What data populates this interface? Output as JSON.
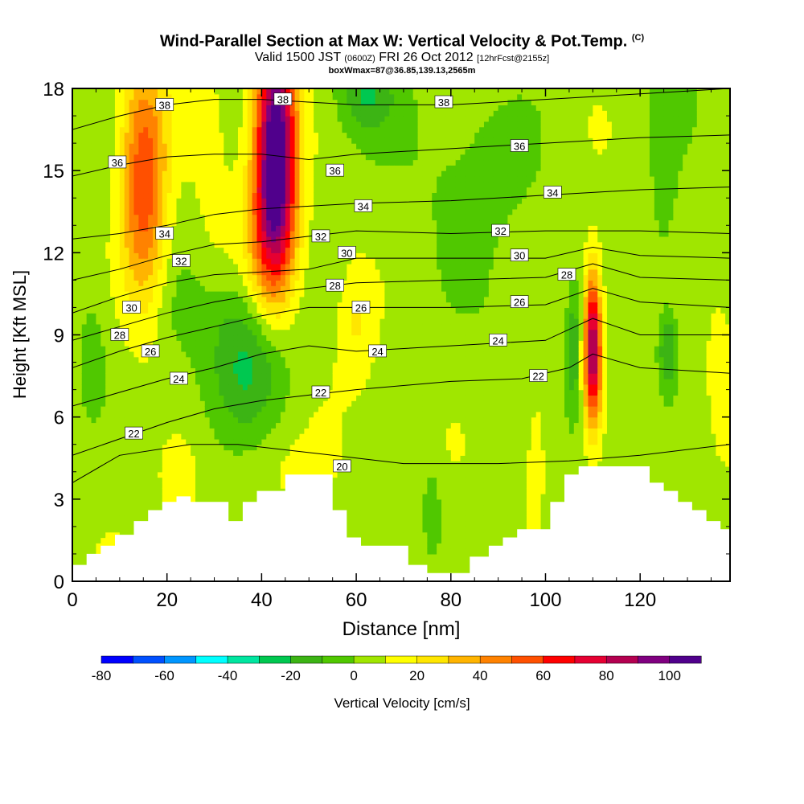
{
  "header": {
    "title": "Wind-Parallel Section at Max W: Vertical Velocity & Pot.Temp.",
    "title_tag": "(C)",
    "valid_prefix": "Valid 1500 JST",
    "valid_zulu": "(0600Z)",
    "valid_date": "FRI 26 Oct 2012",
    "forecast_tag": "[12hrFcst@2155z]",
    "box_info": "boxWmax=87@36.85,139.13,2565m"
  },
  "chart_data": {
    "type": "heatmap",
    "xlabel": "Distance [nm]",
    "ylabel": "Height [Kft MSL]",
    "xlim": [
      0,
      139
    ],
    "ylim": [
      0,
      18
    ],
    "x_ticks": [
      0,
      20,
      40,
      60,
      80,
      100,
      120
    ],
    "y_ticks": [
      0,
      3,
      6,
      9,
      12,
      15,
      18
    ],
    "colorbar": {
      "label": "Vertical Velocity [cm/s]",
      "min": -80,
      "max": 110,
      "step": 10,
      "tick_values": [
        -80,
        -60,
        -40,
        -20,
        0,
        20,
        40,
        60,
        80,
        100
      ],
      "colors": [
        "#0000ff",
        "#0050ff",
        "#0096ff",
        "#00ffff",
        "#00e6a0",
        "#00c850",
        "#3cb414",
        "#50c800",
        "#a0e600",
        "#ffff00",
        "#ffe600",
        "#ffb400",
        "#ff8200",
        "#ff5000",
        "#ff0000",
        "#e60032",
        "#b40050",
        "#800080",
        "#50008c"
      ]
    },
    "background_value": 5,
    "updrafts": [
      {
        "x": 15,
        "y": 14.5,
        "sx": 3.5,
        "sy": 3.2,
        "amp": 55
      },
      {
        "x": 43,
        "y": 16.0,
        "sx": 3.0,
        "sy": 3.0,
        "amp": 108
      },
      {
        "x": 42,
        "y": 12.5,
        "sx": 3.5,
        "sy": 2.0,
        "amp": 30
      },
      {
        "x": 110,
        "y": 8.5,
        "sx": 1.3,
        "sy": 1.9,
        "amp": 88
      },
      {
        "x": 98,
        "y": 5.0,
        "sx": 2.0,
        "sy": 2.0,
        "amp": 14
      },
      {
        "x": 60,
        "y": 9.5,
        "sx": 2.5,
        "sy": 1.5,
        "amp": 13
      },
      {
        "x": 45,
        "y": 4.0,
        "sx": 8.0,
        "sy": 1.2,
        "amp": 9
      },
      {
        "x": 23,
        "y": 3.5,
        "sx": 3.0,
        "sy": 1.2,
        "amp": 8
      },
      {
        "x": 137,
        "y": 8.0,
        "sx": 1.5,
        "sy": 1.5,
        "amp": 12
      },
      {
        "x": 29,
        "y": 13.5,
        "sx": 3.0,
        "sy": 3.5,
        "amp": 6
      }
    ],
    "downdrafts": [
      {
        "x": 37,
        "y": 8.0,
        "sx": 6.0,
        "sy": 1.6,
        "amp": 24
      },
      {
        "x": 106,
        "y": 8.5,
        "sx": 1.0,
        "sy": 1.5,
        "amp": 24
      },
      {
        "x": 126,
        "y": 8.5,
        "sx": 1.5,
        "sy": 1.0,
        "amp": 28
      },
      {
        "x": 62,
        "y": 17.8,
        "sx": 4.0,
        "sy": 1.0,
        "amp": 22
      },
      {
        "x": 76,
        "y": 2.5,
        "sx": 1.5,
        "sy": 1.2,
        "amp": 15
      },
      {
        "x": 90,
        "y": 15.5,
        "sx": 8.0,
        "sy": 2.0,
        "amp": 10
      },
      {
        "x": 4,
        "y": 8.0,
        "sx": 2.0,
        "sy": 1.5,
        "amp": 13
      },
      {
        "x": 125,
        "y": 14.0,
        "sx": 2.0,
        "sy": 2.5,
        "amp": 12
      },
      {
        "x": 30,
        "y": 10.0,
        "sx": 8.0,
        "sy": 1.0,
        "amp": 6
      }
    ],
    "terrain_profile": [
      [
        0,
        0.6
      ],
      [
        3,
        0.6
      ],
      [
        3,
        1.0
      ],
      [
        6,
        1.0
      ],
      [
        6,
        1.3
      ],
      [
        9,
        1.3
      ],
      [
        9,
        1.7
      ],
      [
        13,
        1.7
      ],
      [
        13,
        2.2
      ],
      [
        16,
        2.2
      ],
      [
        16,
        2.6
      ],
      [
        19,
        2.6
      ],
      [
        19,
        2.9
      ],
      [
        22,
        2.9
      ],
      [
        22,
        3.1
      ],
      [
        25,
        3.1
      ],
      [
        25,
        2.9
      ],
      [
        33,
        2.9
      ],
      [
        33,
        2.2
      ],
      [
        36,
        2.2
      ],
      [
        36,
        2.9
      ],
      [
        39,
        2.9
      ],
      [
        39,
        3.3
      ],
      [
        45,
        3.3
      ],
      [
        45,
        3.9
      ],
      [
        55,
        3.9
      ],
      [
        55,
        2.6
      ],
      [
        58,
        2.6
      ],
      [
        58,
        1.6
      ],
      [
        61,
        1.6
      ],
      [
        61,
        1.3
      ],
      [
        71,
        1.3
      ],
      [
        71,
        0.6
      ],
      [
        75,
        0.6
      ],
      [
        75,
        0.3
      ],
      [
        84,
        0.3
      ],
      [
        84,
        0.9
      ],
      [
        88,
        0.9
      ],
      [
        88,
        1.3
      ],
      [
        91,
        1.3
      ],
      [
        91,
        1.6
      ],
      [
        94,
        1.6
      ],
      [
        94,
        1.9
      ],
      [
        101,
        1.9
      ],
      [
        101,
        2.9
      ],
      [
        104,
        2.9
      ],
      [
        104,
        3.9
      ],
      [
        107,
        3.9
      ],
      [
        107,
        4.2
      ],
      [
        122,
        4.2
      ],
      [
        122,
        3.6
      ],
      [
        125,
        3.6
      ],
      [
        125,
        3.3
      ],
      [
        128,
        3.3
      ],
      [
        128,
        2.9
      ],
      [
        131,
        2.9
      ],
      [
        131,
        2.6
      ],
      [
        134,
        2.6
      ],
      [
        134,
        2.2
      ],
      [
        137,
        2.2
      ],
      [
        137,
        1.9
      ],
      [
        139,
        1.9
      ]
    ],
    "isentropes": [
      {
        "value": 20,
        "points": [
          [
            0,
            3.6
          ],
          [
            10,
            4.6
          ],
          [
            25,
            5.0
          ],
          [
            35,
            5.0
          ],
          [
            45,
            4.8
          ],
          [
            55,
            4.6
          ],
          [
            70,
            4.3
          ],
          [
            90,
            4.3
          ],
          [
            105,
            4.4
          ],
          [
            120,
            4.6
          ],
          [
            139,
            5.0
          ]
        ]
      },
      {
        "value": 22,
        "points": [
          [
            0,
            4.6
          ],
          [
            10,
            5.2
          ],
          [
            20,
            5.8
          ],
          [
            30,
            6.3
          ],
          [
            40,
            6.6
          ],
          [
            50,
            6.8
          ],
          [
            60,
            7.0
          ],
          [
            80,
            7.3
          ],
          [
            95,
            7.4
          ],
          [
            105,
            7.8
          ],
          [
            110,
            8.3
          ],
          [
            120,
            7.8
          ],
          [
            139,
            7.6
          ]
        ]
      },
      {
        "value": 24,
        "points": [
          [
            0,
            6.4
          ],
          [
            10,
            6.9
          ],
          [
            20,
            7.4
          ],
          [
            30,
            7.8
          ],
          [
            40,
            8.3
          ],
          [
            50,
            8.6
          ],
          [
            60,
            8.4
          ],
          [
            80,
            8.6
          ],
          [
            100,
            8.8
          ],
          [
            110,
            9.6
          ],
          [
            120,
            9.0
          ],
          [
            139,
            9.0
          ]
        ]
      },
      {
        "value": 26,
        "points": [
          [
            0,
            7.8
          ],
          [
            10,
            8.4
          ],
          [
            20,
            8.9
          ],
          [
            30,
            9.3
          ],
          [
            40,
            9.7
          ],
          [
            50,
            10.0
          ],
          [
            60,
            10.0
          ],
          [
            80,
            10.0
          ],
          [
            100,
            10.1
          ],
          [
            110,
            10.7
          ],
          [
            120,
            10.2
          ],
          [
            139,
            10.0
          ]
        ]
      },
      {
        "value": 28,
        "points": [
          [
            0,
            8.8
          ],
          [
            10,
            9.3
          ],
          [
            20,
            9.8
          ],
          [
            30,
            10.2
          ],
          [
            40,
            10.5
          ],
          [
            50,
            10.7
          ],
          [
            60,
            10.9
          ],
          [
            80,
            11.0
          ],
          [
            100,
            11.1
          ],
          [
            110,
            11.6
          ],
          [
            120,
            11.1
          ],
          [
            139,
            11.0
          ]
        ]
      },
      {
        "value": 30,
        "points": [
          [
            0,
            9.8
          ],
          [
            10,
            10.4
          ],
          [
            20,
            10.9
          ],
          [
            30,
            11.2
          ],
          [
            40,
            11.3
          ],
          [
            50,
            11.4
          ],
          [
            60,
            11.8
          ],
          [
            80,
            11.8
          ],
          [
            100,
            11.8
          ],
          [
            110,
            12.2
          ],
          [
            120,
            11.9
          ],
          [
            139,
            11.8
          ]
        ]
      },
      {
        "value": 32,
        "points": [
          [
            0,
            11.0
          ],
          [
            10,
            11.4
          ],
          [
            20,
            11.9
          ],
          [
            30,
            12.3
          ],
          [
            40,
            12.4
          ],
          [
            50,
            12.6
          ],
          [
            60,
            12.8
          ],
          [
            80,
            12.7
          ],
          [
            100,
            12.8
          ],
          [
            120,
            12.8
          ],
          [
            139,
            12.7
          ]
        ]
      },
      {
        "value": 34,
        "points": [
          [
            0,
            12.5
          ],
          [
            10,
            12.7
          ],
          [
            20,
            13.0
          ],
          [
            30,
            13.4
          ],
          [
            40,
            13.6
          ],
          [
            50,
            13.7
          ],
          [
            60,
            13.8
          ],
          [
            80,
            13.9
          ],
          [
            100,
            14.1
          ],
          [
            120,
            14.3
          ],
          [
            139,
            14.4
          ]
        ]
      },
      {
        "value": 36,
        "points": [
          [
            0,
            14.8
          ],
          [
            10,
            15.2
          ],
          [
            20,
            15.5
          ],
          [
            30,
            15.6
          ],
          [
            40,
            15.6
          ],
          [
            50,
            15.4
          ],
          [
            60,
            15.6
          ],
          [
            80,
            15.8
          ],
          [
            100,
            16.0
          ],
          [
            120,
            16.2
          ],
          [
            139,
            16.3
          ]
        ]
      },
      {
        "value": 38,
        "points": [
          [
            0,
            16.5
          ],
          [
            10,
            17.0
          ],
          [
            20,
            17.4
          ],
          [
            30,
            17.6
          ],
          [
            40,
            17.6
          ],
          [
            50,
            17.5
          ],
          [
            60,
            17.4
          ],
          [
            80,
            17.4
          ],
          [
            100,
            17.6
          ],
          [
            120,
            17.8
          ],
          [
            139,
            18.0
          ]
        ]
      }
    ],
    "contour_labels": [
      {
        "text": "38",
        "x": 19.5,
        "y": 17.4
      },
      {
        "text": "38",
        "x": 44.5,
        "y": 17.6
      },
      {
        "text": "38",
        "x": 78.5,
        "y": 17.5
      },
      {
        "text": "36",
        "x": 9.5,
        "y": 15.3
      },
      {
        "text": "36",
        "x": 55.5,
        "y": 15.0
      },
      {
        "text": "36",
        "x": 94.5,
        "y": 15.9
      },
      {
        "text": "34",
        "x": 61.5,
        "y": 13.7
      },
      {
        "text": "34",
        "x": 101.5,
        "y": 14.2
      },
      {
        "text": "34",
        "x": 19.5,
        "y": 12.7
      },
      {
        "text": "32",
        "x": 52.5,
        "y": 12.6
      },
      {
        "text": "32",
        "x": 90.5,
        "y": 12.8
      },
      {
        "text": "32",
        "x": 23.0,
        "y": 11.7
      },
      {
        "text": "30",
        "x": 58.0,
        "y": 12.0
      },
      {
        "text": "30",
        "x": 94.5,
        "y": 11.9
      },
      {
        "text": "30",
        "x": 12.5,
        "y": 10.0
      },
      {
        "text": "28",
        "x": 104.5,
        "y": 11.2
      },
      {
        "text": "28",
        "x": 55.5,
        "y": 10.8
      },
      {
        "text": "28",
        "x": 10.0,
        "y": 9.0
      },
      {
        "text": "26",
        "x": 61.0,
        "y": 10.0
      },
      {
        "text": "26",
        "x": 94.5,
        "y": 10.2
      },
      {
        "text": "26",
        "x": 16.5,
        "y": 8.4
      },
      {
        "text": "24",
        "x": 64.5,
        "y": 8.4
      },
      {
        "text": "24",
        "x": 90.0,
        "y": 8.8
      },
      {
        "text": "24",
        "x": 22.5,
        "y": 7.4
      },
      {
        "text": "22",
        "x": 52.5,
        "y": 6.9
      },
      {
        "text": "22",
        "x": 98.5,
        "y": 7.5
      },
      {
        "text": "22",
        "x": 13.0,
        "y": 5.4
      },
      {
        "text": "20",
        "x": 57.0,
        "y": 4.2
      }
    ]
  }
}
